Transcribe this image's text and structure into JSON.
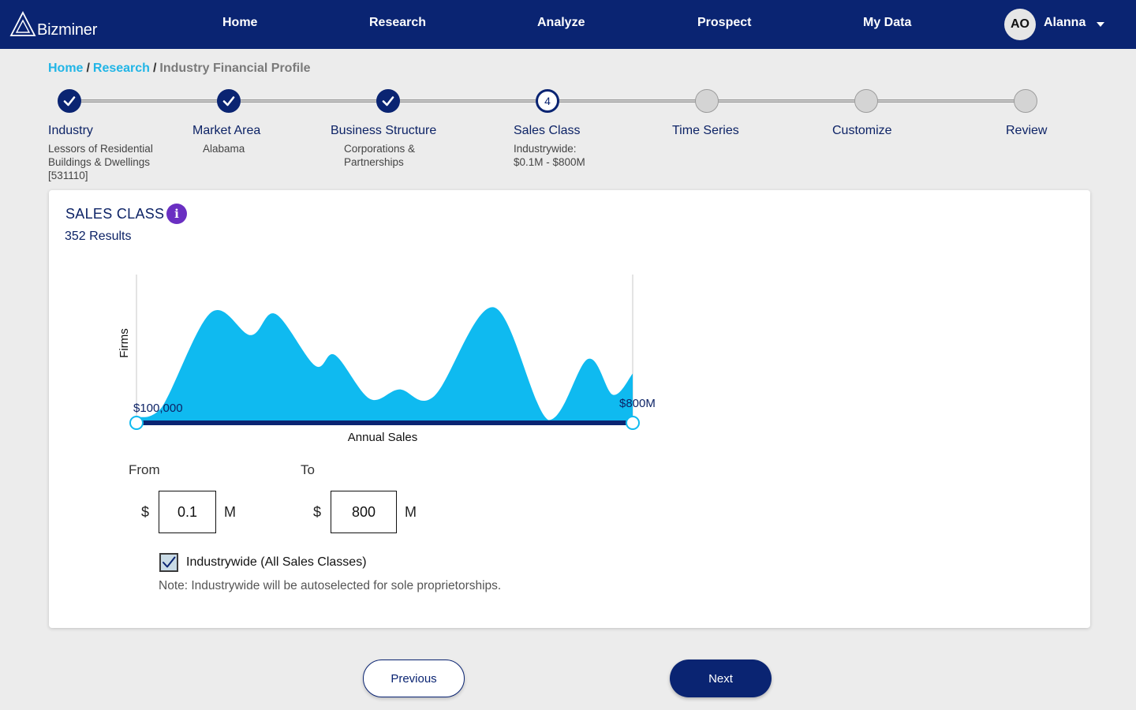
{
  "brand": {
    "name": "Bizminer"
  },
  "nav": {
    "items": [
      "Home",
      "Research",
      "Analyze",
      "Prospect",
      "My Data"
    ],
    "user": {
      "initials": "AO",
      "name": "Alanna"
    }
  },
  "breadcrumb": {
    "home": "Home",
    "research": "Research",
    "current": "Industry Financial Profile"
  },
  "stepper": {
    "steps": [
      {
        "title": "Industry",
        "subtitle": "Lessors of Residential\nBuildings & Dwellings\n[531110]",
        "status": "done"
      },
      {
        "title": "Market Area",
        "subtitle": "Alabama",
        "status": "done"
      },
      {
        "title": "Business Structure",
        "subtitle": "Corporations &\nPartnerships",
        "status": "done"
      },
      {
        "title": "Sales Class",
        "subtitle": "Industrywide:\n$0.1M - $800M",
        "status": "current",
        "number": "4"
      },
      {
        "title": "Time Series",
        "subtitle": "",
        "status": "todo"
      },
      {
        "title": "Customize",
        "subtitle": "",
        "status": "todo"
      },
      {
        "title": "Review",
        "subtitle": "",
        "status": "todo"
      }
    ]
  },
  "card": {
    "title": "SALES CLASS",
    "info_icon": "info-icon",
    "results": "352  Results"
  },
  "chart_data": {
    "type": "area",
    "ylabel": "Firms",
    "xlabel": "Annual Sales",
    "x_range": [
      "$100,000",
      "$800M"
    ],
    "x": [
      0,
      0.05,
      0.15,
      0.23,
      0.28,
      0.36,
      0.4,
      0.47,
      0.53,
      0.6,
      0.72,
      0.83,
      0.91,
      0.96,
      1.0
    ],
    "values": [
      0.03,
      0.1,
      0.82,
      0.65,
      0.81,
      0.42,
      0.5,
      0.17,
      0.24,
      0.19,
      0.86,
      0.01,
      0.47,
      0.2,
      0.36
    ],
    "color": "#0fbaf0",
    "slider_color": "#0a2472"
  },
  "range": {
    "from_label": "From",
    "to_label": "To",
    "currency": "$",
    "unit": "M",
    "from_value": "0.1",
    "to_value": "800"
  },
  "industrywide": {
    "label": "Industrywide (All Sales Classes)",
    "checked": true,
    "note": "Note: Industrywide will be autoselected for sole proprietorships."
  },
  "buttons": {
    "previous": "Previous",
    "next": "Next"
  }
}
